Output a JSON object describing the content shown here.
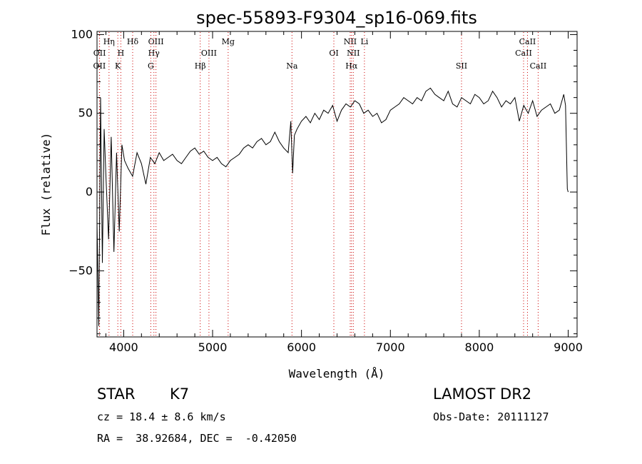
{
  "chart_data": {
    "type": "line",
    "title": "spec-55893-F9304_sp16-069.fits",
    "xlabel": "Wavelength (Å)",
    "ylabel": "Flux (relative)",
    "xlim": [
      3700,
      9100
    ],
    "ylim": [
      -92,
      102
    ],
    "xticks": [
      4000,
      5000,
      6000,
      7000,
      8000,
      9000
    ],
    "yticks": [
      -50,
      0,
      50,
      100
    ],
    "line_color": "#000000",
    "marker_color": "#cc0000",
    "series": [
      {
        "x": [
          3700,
          3720,
          3740,
          3760,
          3780,
          3800,
          3830,
          3860,
          3890,
          3920,
          3950,
          3980,
          4010,
          4050,
          4100,
          4150,
          4200,
          4250,
          4300,
          4350,
          4400,
          4450,
          4500,
          4550,
          4600,
          4650,
          4700,
          4750,
          4800,
          4850,
          4900,
          4950,
          5000,
          5050,
          5100,
          5150,
          5200,
          5250,
          5300,
          5350,
          5400,
          5450,
          5500,
          5550,
          5600,
          5650,
          5700,
          5750,
          5800,
          5850,
          5880,
          5900,
          5920,
          5950,
          6000,
          6050,
          6100,
          6150,
          6200,
          6250,
          6300,
          6350,
          6400,
          6450,
          6500,
          6550,
          6600,
          6650,
          6700,
          6750,
          6800,
          6850,
          6900,
          6950,
          7000,
          7050,
          7100,
          7150,
          7200,
          7250,
          7300,
          7350,
          7400,
          7450,
          7500,
          7550,
          7600,
          7650,
          7700,
          7750,
          7800,
          7850,
          7900,
          7950,
          8000,
          8050,
          8100,
          8150,
          8200,
          8250,
          8300,
          8350,
          8400,
          8450,
          8500,
          8550,
          8600,
          8650,
          8700,
          8750,
          8800,
          8850,
          8900,
          8930,
          8950,
          8970,
          8990,
          9000
        ],
        "y": [
          -20,
          -85,
          60,
          -45,
          40,
          10,
          -30,
          35,
          -38,
          25,
          -25,
          30,
          20,
          15,
          10,
          25,
          18,
          5,
          22,
          18,
          25,
          20,
          22,
          24,
          20,
          18,
          22,
          26,
          28,
          24,
          26,
          22,
          20,
          22,
          18,
          16,
          20,
          22,
          24,
          28,
          30,
          28,
          32,
          34,
          30,
          32,
          38,
          32,
          28,
          25,
          45,
          12,
          36,
          40,
          45,
          48,
          44,
          50,
          46,
          52,
          50,
          55,
          45,
          52,
          56,
          54,
          58,
          56,
          50,
          52,
          48,
          50,
          44,
          46,
          52,
          54,
          56,
          60,
          58,
          56,
          60,
          58,
          64,
          66,
          62,
          60,
          58,
          64,
          56,
          54,
          60,
          58,
          56,
          62,
          60,
          56,
          58,
          64,
          60,
          54,
          58,
          56,
          60,
          45,
          55,
          50,
          58,
          48,
          52,
          54,
          56,
          50,
          52,
          58,
          62,
          55,
          2,
          0
        ]
      }
    ],
    "spectral_lines": [
      {
        "label": "OII",
        "x": 3727,
        "row": 3
      },
      {
        "label": "OII",
        "x": 3729,
        "row": 2
      },
      {
        "label": "Hη",
        "x": 3835,
        "row": 1
      },
      {
        "label": "H",
        "x": 3968,
        "row": 2
      },
      {
        "label": "K",
        "x": 3934,
        "row": 3
      },
      {
        "label": "Hδ",
        "x": 4101,
        "row": 1
      },
      {
        "label": "OIII",
        "x": 4363,
        "row": 1
      },
      {
        "label": "Hγ",
        "x": 4340,
        "row": 2
      },
      {
        "label": "G",
        "x": 4305,
        "row": 3
      },
      {
        "label": "Hβ",
        "x": 4861,
        "row": 3
      },
      {
        "label": "OIII",
        "x": 4959,
        "row": 2
      },
      {
        "label": "Mg",
        "x": 5175,
        "row": 1
      },
      {
        "label": "Na",
        "x": 5893,
        "row": 3
      },
      {
        "label": "OI",
        "x": 6364,
        "row": 2
      },
      {
        "label": "NII",
        "x": 6548,
        "row": 1
      },
      {
        "label": "NII",
        "x": 6583,
        "row": 2
      },
      {
        "label": "Hα",
        "x": 6563,
        "row": 3
      },
      {
        "label": "Li",
        "x": 6708,
        "row": 1
      },
      {
        "label": "SII",
        "x": 7800,
        "row": 3
      },
      {
        "label": "CaII",
        "x": 8498,
        "row": 2
      },
      {
        "label": "CaII",
        "x": 8542,
        "row": 1
      },
      {
        "label": "CaII",
        "x": 8662,
        "row": 3
      }
    ]
  },
  "info": {
    "class_label": "STAR",
    "subclass_label": "K7",
    "survey_label": "LAMOST DR2",
    "cz_text": "cz = 18.4 ± 8.6 km/s",
    "obs_date_text": "Obs-Date: 20111127",
    "coords_text": "RA =  38.92684, DEC =  -0.42050"
  }
}
